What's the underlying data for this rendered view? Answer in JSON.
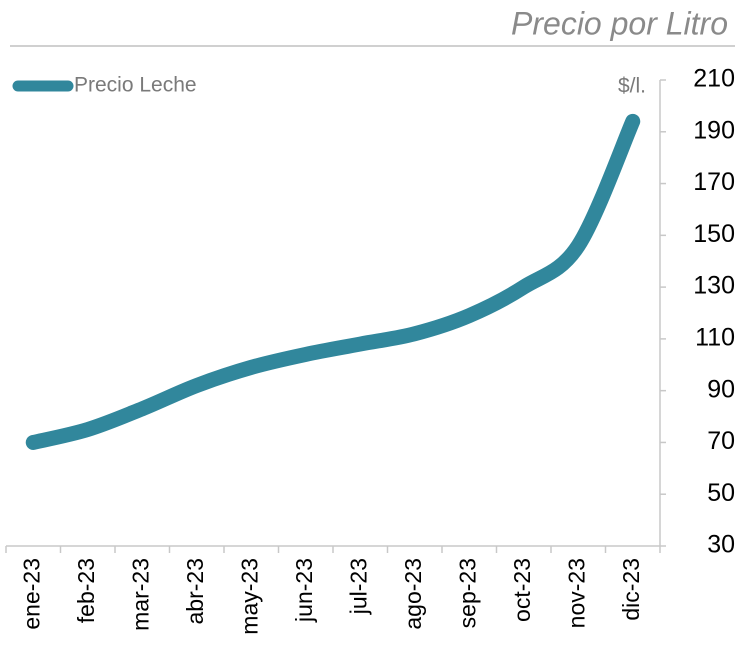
{
  "chart_data": {
    "type": "line",
    "title": "Precio por Litro",
    "y_label": "$/l.",
    "categories": [
      "ene-23",
      "feb-23",
      "mar-23",
      "abr-23",
      "may-23",
      "jun-23",
      "jul-23",
      "ago-23",
      "sep-23",
      "oct-23",
      "nov-23",
      "dic-23"
    ],
    "series": [
      {
        "name": "Precio Leche",
        "color": "#31879c",
        "values": [
          70,
          75,
          83,
          92,
          99,
          104,
          108,
          112,
          119,
          130,
          146,
          194
        ]
      }
    ],
    "ylim": [
      30,
      210
    ],
    "yticks": [
      30,
      50,
      70,
      90,
      110,
      130,
      150,
      170,
      190,
      210
    ],
    "grid": false,
    "legend": "top-left"
  }
}
